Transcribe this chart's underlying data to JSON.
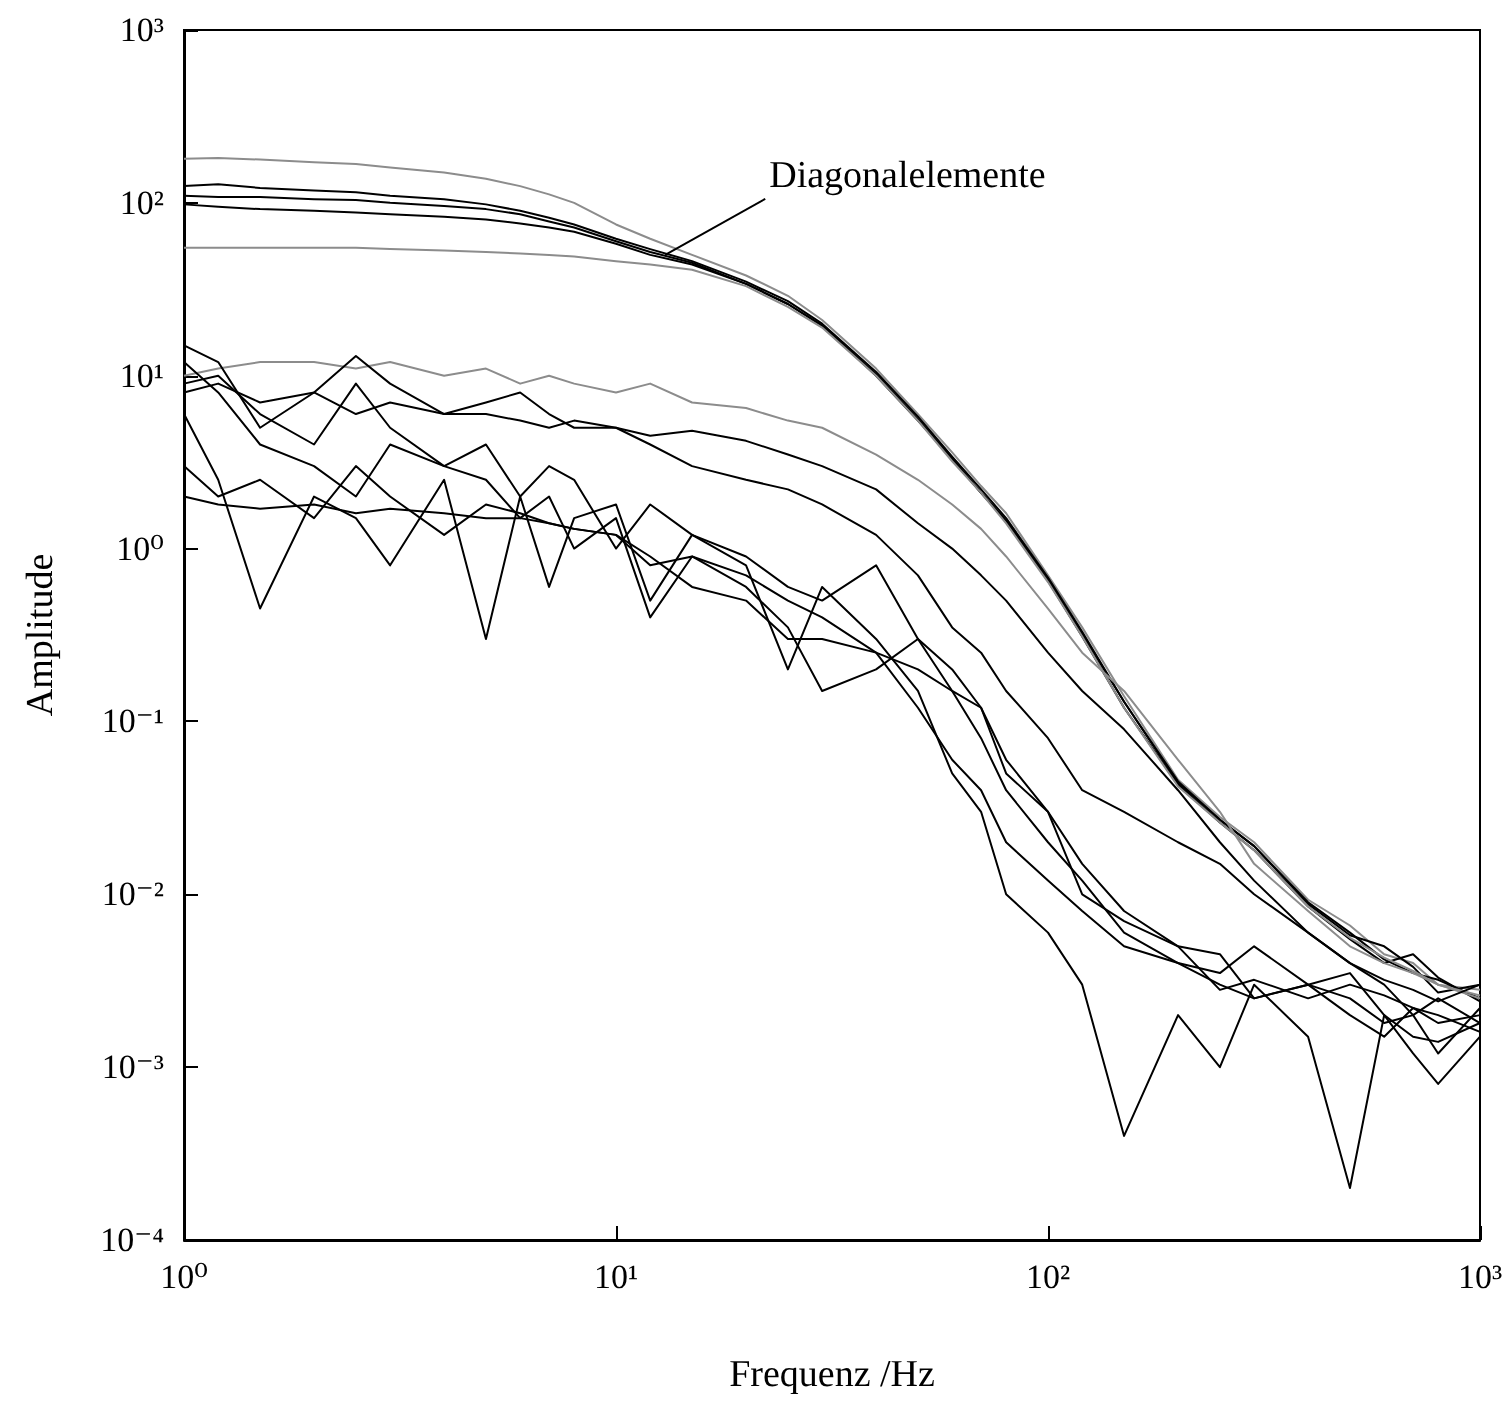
{
  "chart_data": {
    "type": "line",
    "xlabel": "Frequenz /Hz",
    "ylabel": "Amplitude",
    "annotations": [
      {
        "text": "Diagonalelemente",
        "x": 13,
        "y": 50
      }
    ],
    "log": "xy",
    "grid": false,
    "marker": "none",
    "xlim": [
      1,
      1000
    ],
    "ylim": [
      0.0001,
      1000
    ],
    "xticks": [
      {
        "value": 1,
        "label": "10⁰"
      },
      {
        "value": 10,
        "label": "10¹"
      },
      {
        "value": 100,
        "label": "10²"
      },
      {
        "value": 1000,
        "label": "10³"
      }
    ],
    "yticks": [
      {
        "value": 0.0001,
        "label": "10⁻⁴"
      },
      {
        "value": 0.001,
        "label": "10⁻³"
      },
      {
        "value": 0.01,
        "label": "10⁻²"
      },
      {
        "value": 0.1,
        "label": "10⁻¹"
      },
      {
        "value": 1,
        "label": "10⁰"
      },
      {
        "value": 10,
        "label": "10¹"
      },
      {
        "value": 100,
        "label": "10²"
      },
      {
        "value": 1000,
        "label": "10³"
      }
    ],
    "x": [
      1,
      1.2,
      1.5,
      2,
      2.5,
      3,
      4,
      5,
      6,
      7,
      8,
      10,
      12,
      15,
      20,
      25,
      30,
      40,
      50,
      60,
      70,
      80,
      100,
      120,
      150,
      200,
      250,
      300,
      400,
      500,
      600,
      700,
      800,
      1000
    ],
    "series": [
      {
        "color": "#8c8c8c",
        "values": [
          180,
          182,
          178,
          172,
          168,
          160,
          150,
          138,
          125,
          112,
          100,
          75,
          62,
          50,
          38,
          29,
          21,
          11,
          6,
          3.6,
          2.3,
          1.6,
          0.7,
          0.35,
          0.14,
          0.046,
          0.028,
          0.02,
          0.0093,
          0.0066,
          0.0045,
          0.004,
          0.003,
          0.0028
        ]
      },
      {
        "color": "#000000",
        "values": [
          125,
          128,
          122,
          118,
          115,
          110,
          105,
          98,
          90,
          82,
          75,
          62,
          54,
          46,
          35,
          27,
          20,
          10.5,
          5.8,
          3.4,
          2.2,
          1.5,
          0.68,
          0.33,
          0.13,
          0.045,
          0.027,
          0.019,
          0.009,
          0.006,
          0.0042,
          0.0035,
          0.0032,
          0.0025
        ]
      },
      {
        "color": "#000000",
        "values": [
          110,
          108,
          108,
          105,
          104,
          100,
          96,
          92,
          86,
          78,
          72,
          60,
          52,
          45,
          34,
          26,
          19.5,
          10.2,
          5.6,
          3.3,
          2.1,
          1.45,
          0.66,
          0.32,
          0.13,
          0.044,
          0.027,
          0.019,
          0.0088,
          0.0058,
          0.005,
          0.0038,
          0.0027,
          0.003
        ]
      },
      {
        "color": "#000000",
        "values": [
          98,
          95,
          92,
          90,
          88,
          86,
          83,
          80,
          76,
          72,
          68,
          58,
          50,
          44,
          34,
          26,
          19.5,
          10,
          5.5,
          3.3,
          2.1,
          1.45,
          0.65,
          0.31,
          0.12,
          0.043,
          0.026,
          0.018,
          0.0085,
          0.0055,
          0.004,
          0.0045,
          0.0033,
          0.0024
        ]
      },
      {
        "color": "#8c8c8c",
        "values": [
          55,
          55,
          55,
          55,
          55,
          54,
          53,
          52,
          51,
          50,
          49,
          46,
          44,
          41,
          33,
          25,
          19,
          10,
          5.5,
          3.2,
          2.1,
          1.4,
          0.64,
          0.31,
          0.12,
          0.042,
          0.026,
          0.018,
          0.0085,
          0.0056,
          0.0043,
          0.0036,
          0.003,
          0.0026
        ]
      },
      {
        "color": "#8c8c8c",
        "values": [
          10,
          11,
          12,
          12,
          11,
          12,
          10,
          11,
          9,
          10,
          9,
          8,
          9,
          7,
          6.5,
          5.5,
          5,
          3.5,
          2.5,
          1.8,
          1.3,
          0.9,
          0.45,
          0.25,
          0.15,
          0.06,
          0.03,
          0.015,
          0.008,
          0.005,
          0.004,
          0.0035,
          0.003,
          0.0025
        ]
      },
      {
        "color": "#000000",
        "values": [
          8,
          9,
          7,
          8,
          6,
          7,
          6,
          6,
          5.5,
          5,
          5.5,
          5,
          4.5,
          4.8,
          4.2,
          3.5,
          3,
          2.2,
          1.4,
          1.0,
          0.7,
          0.5,
          0.25,
          0.15,
          0.09,
          0.04,
          0.02,
          0.012,
          0.006,
          0.004,
          0.0032,
          0.0028,
          0.0024,
          0.003
        ]
      },
      {
        "color": "#000000",
        "values": [
          15,
          12,
          5,
          8,
          13,
          9,
          6,
          7,
          8,
          6,
          5,
          5,
          4,
          3,
          2.5,
          2.2,
          1.8,
          1.2,
          0.7,
          0.35,
          0.25,
          0.15,
          0.08,
          0.04,
          0.03,
          0.02,
          0.015,
          0.01,
          0.006,
          0.004,
          0.003,
          0.002,
          0.0025,
          0.0018
        ]
      },
      {
        "color": "#000000",
        "values": [
          6,
          2.5,
          0.45,
          2,
          1.5,
          0.8,
          2.5,
          0.3,
          2,
          0.6,
          1.5,
          1.8,
          0.5,
          1.2,
          0.8,
          0.2,
          0.6,
          0.3,
          0.15,
          0.05,
          0.03,
          0.01,
          0.006,
          0.003,
          0.0004,
          0.002,
          0.001,
          0.003,
          0.0015,
          0.0002,
          0.002,
          0.0012,
          0.0008,
          0.0015
        ]
      },
      {
        "color": "#000000",
        "values": [
          3,
          2,
          2.5,
          1.5,
          3,
          2,
          1.2,
          1.8,
          1.6,
          1.4,
          1.3,
          1.2,
          0.8,
          0.9,
          0.7,
          0.5,
          0.4,
          0.25,
          0.12,
          0.06,
          0.04,
          0.02,
          0.012,
          0.008,
          0.005,
          0.004,
          0.003,
          0.0025,
          0.003,
          0.002,
          0.0015,
          0.0022,
          0.002,
          0.0016
        ]
      },
      {
        "color": "#000000",
        "values": [
          12,
          8,
          4,
          3,
          2,
          4,
          3,
          2.5,
          1.5,
          2,
          1,
          1.5,
          0.4,
          0.9,
          0.6,
          0.35,
          0.15,
          0.2,
          0.3,
          0.15,
          0.08,
          0.04,
          0.02,
          0.012,
          0.006,
          0.004,
          0.0035,
          0.005,
          0.003,
          0.0025,
          0.0018,
          0.002,
          0.0012,
          0.0022
        ]
      },
      {
        "color": "#000000",
        "values": [
          9,
          10,
          6,
          4,
          9,
          5,
          3,
          4,
          2,
          3,
          2.5,
          1,
          1.8,
          1.2,
          0.9,
          0.6,
          0.5,
          0.8,
          0.3,
          0.2,
          0.12,
          0.05,
          0.03,
          0.01,
          0.007,
          0.005,
          0.0045,
          0.0025,
          0.003,
          0.0035,
          0.002,
          0.0015,
          0.0014,
          0.0018
        ]
      },
      {
        "color": "#000000",
        "values": [
          2,
          1.8,
          1.7,
          1.8,
          1.6,
          1.7,
          1.6,
          1.5,
          1.5,
          1.4,
          1.3,
          1.2,
          0.9,
          0.6,
          0.5,
          0.3,
          0.3,
          0.25,
          0.2,
          0.15,
          0.12,
          0.06,
          0.03,
          0.015,
          0.008,
          0.005,
          0.0028,
          0.0032,
          0.0025,
          0.003,
          0.0026,
          0.0022,
          0.0018,
          0.002
        ]
      }
    ]
  }
}
